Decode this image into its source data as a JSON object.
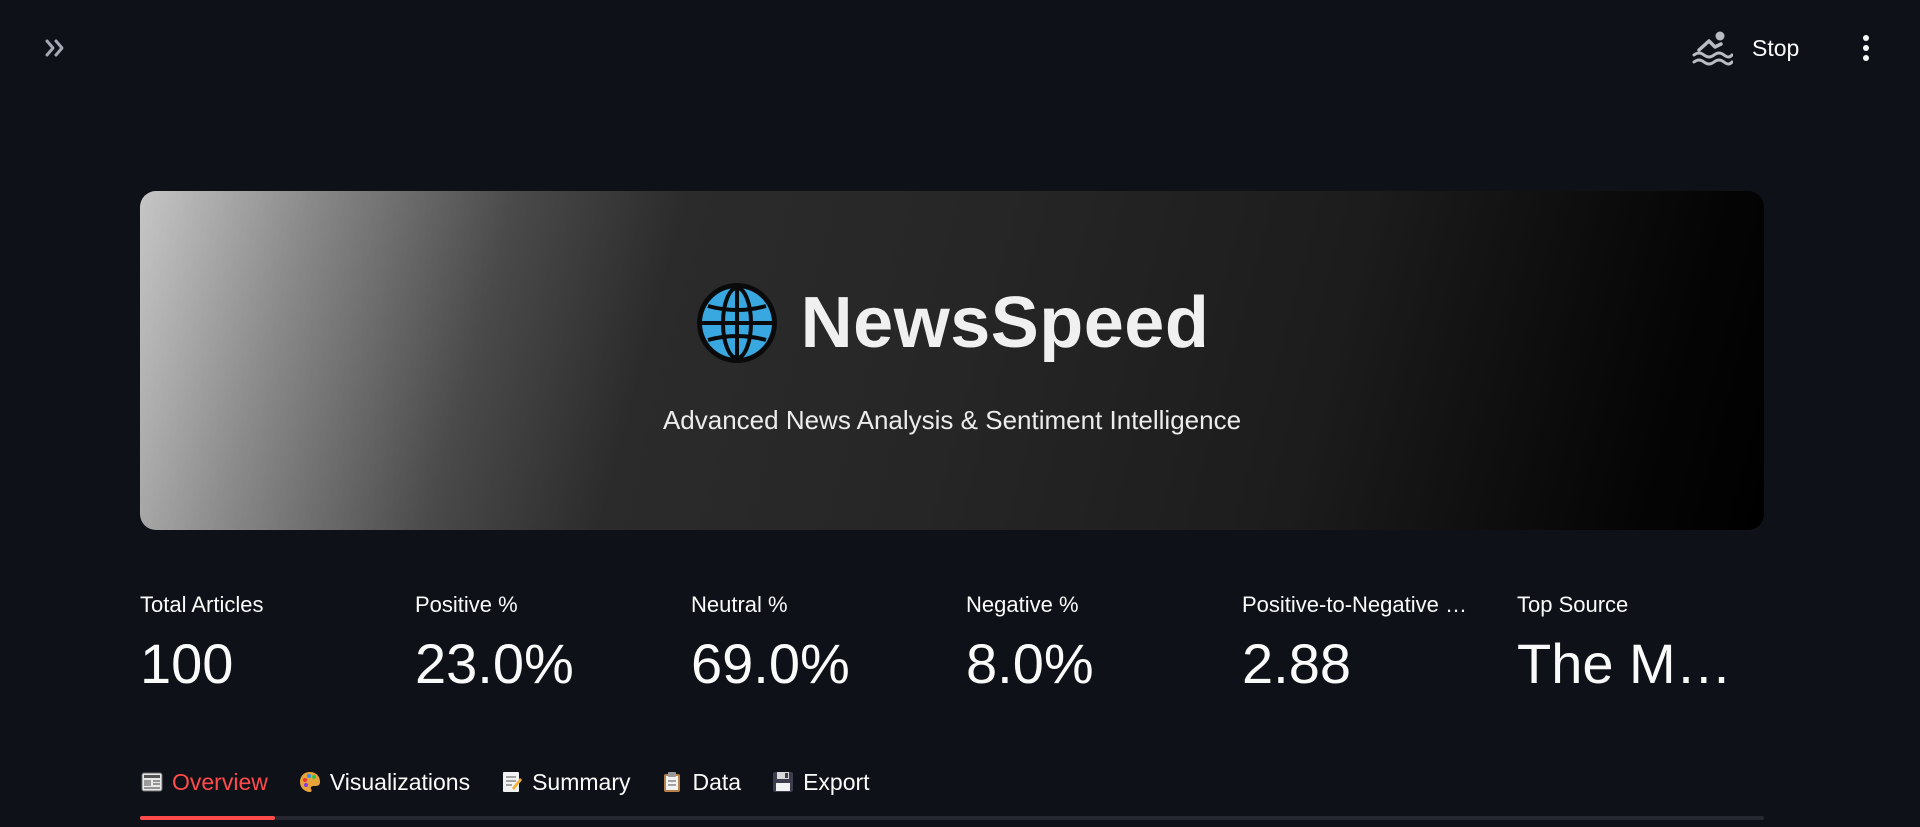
{
  "header": {
    "stop_label": "Stop",
    "icons": {
      "expand": "double-chevron-right-icon",
      "status": "swimmer-icon",
      "menu": "vertical-dots-icon"
    }
  },
  "hero": {
    "title": "NewsSpeed",
    "subtitle": "Advanced News Analysis & Sentiment Intelligence",
    "icon": "globe-icon"
  },
  "metrics": [
    {
      "label": "Total Articles",
      "value": "100"
    },
    {
      "label": "Positive %",
      "value": "23.0%"
    },
    {
      "label": "Neutral %",
      "value": "69.0%"
    },
    {
      "label": "Negative %",
      "value": "8.0%"
    },
    {
      "label": "Positive-to-Negative …",
      "value": "2.88"
    },
    {
      "label": "Top Source",
      "value": "The M…"
    }
  ],
  "tabs": [
    {
      "label": "Overview",
      "icon": "newspaper-icon",
      "active": true
    },
    {
      "label": "Visualizations",
      "icon": "palette-icon",
      "active": false
    },
    {
      "label": "Summary",
      "icon": "memo-icon",
      "active": false
    },
    {
      "label": "Data",
      "icon": "clipboard-icon",
      "active": false
    },
    {
      "label": "Export",
      "icon": "floppy-disk-icon",
      "active": false
    }
  ],
  "colors": {
    "background": "#0e1117",
    "accent": "#ff4b4b",
    "text": "#fafafa"
  }
}
